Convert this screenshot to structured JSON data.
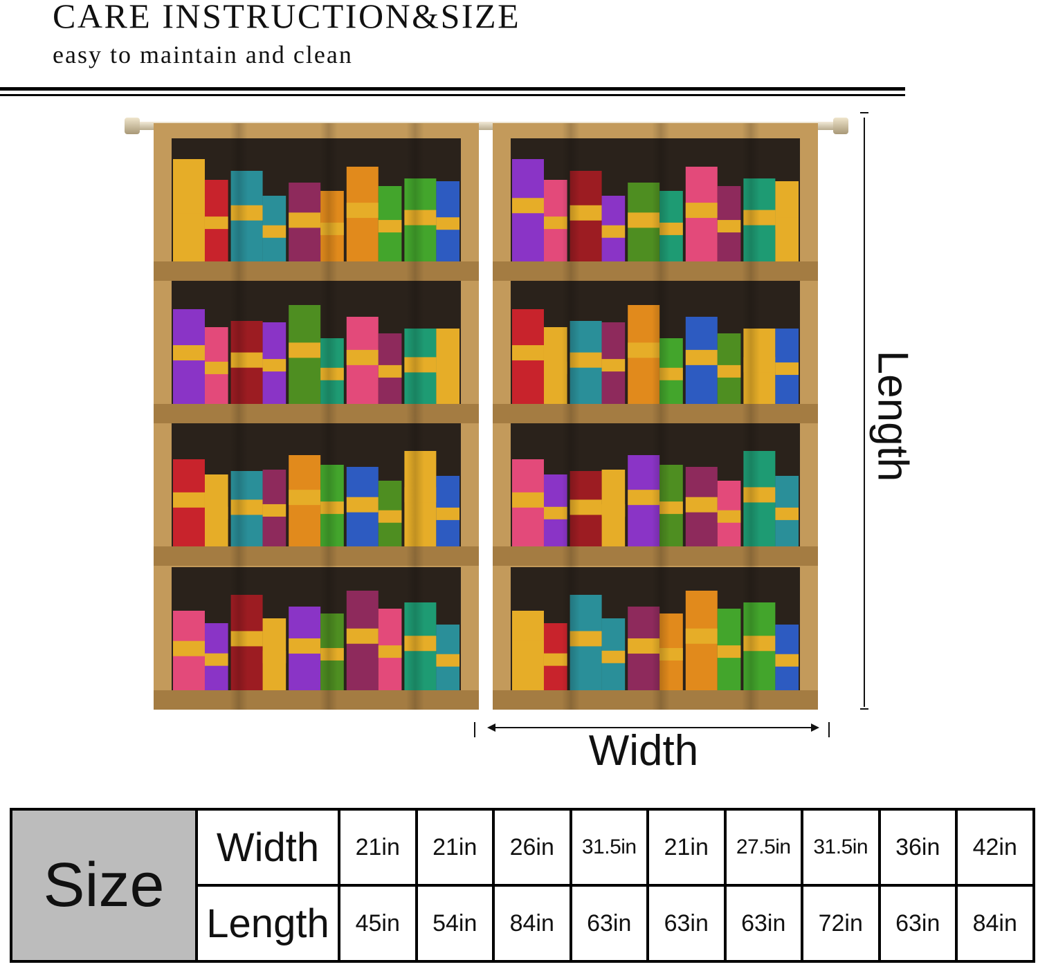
{
  "header": {
    "title": "CARE INSTRUCTION&SIZE",
    "subtitle": "easy to maintain and clean"
  },
  "diagram": {
    "length_label": "Length",
    "width_label": "Width",
    "curtain_colors": {
      "frame": "#c39a5b",
      "frame_dark": "#a47c42",
      "gap": "#2a221b",
      "books": [
        "#c8232c",
        "#e6ad28",
        "#2a8f99",
        "#8e2a5c",
        "#e18a1c",
        "#43a52c",
        "#2d5bc1",
        "#8a34c6",
        "#e34a7a",
        "#1e9b73",
        "#9c1c22",
        "#4e8e21"
      ]
    }
  },
  "size_table": {
    "header": "Size",
    "width_label": "Width",
    "length_label": "Length",
    "widths": [
      "21in",
      "21in",
      "26in",
      "31.5in",
      "21in",
      "27.5in",
      "31.5in",
      "36in",
      "42in"
    ],
    "lengths": [
      "45in",
      "54in",
      "84in",
      "63in",
      "63in",
      "63in",
      "72in",
      "63in",
      "84in"
    ]
  }
}
